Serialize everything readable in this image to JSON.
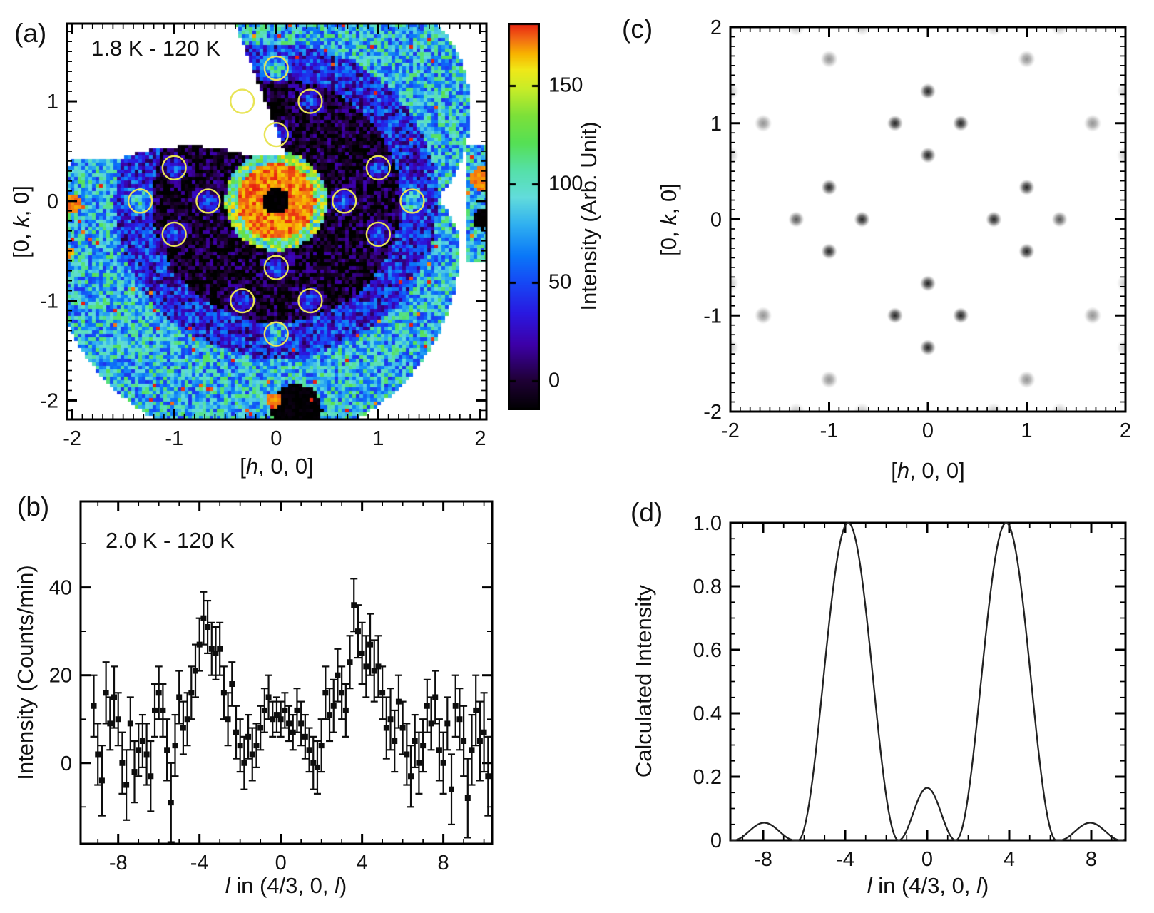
{
  "colors": {
    "frame": "#000000",
    "text": "#111111",
    "curve": "#222222",
    "marker": "#0d0d0d",
    "circle_annotation": "#e8e455",
    "background": "#ffffff"
  },
  "colormap": {
    "stops": [
      [
        0.0,
        "#000000"
      ],
      [
        0.08,
        "#200038"
      ],
      [
        0.17,
        "#3d00a8"
      ],
      [
        0.25,
        "#2a18e0"
      ],
      [
        0.33,
        "#1648f5"
      ],
      [
        0.4,
        "#0a78f8"
      ],
      [
        0.48,
        "#30b0f0"
      ],
      [
        0.55,
        "#62dcdc"
      ],
      [
        0.62,
        "#55e0a8"
      ],
      [
        0.69,
        "#55e055"
      ],
      [
        0.76,
        "#7ce03a"
      ],
      [
        0.83,
        "#c8ec28"
      ],
      [
        0.88,
        "#f0e818"
      ],
      [
        0.92,
        "#f8b400"
      ],
      [
        0.96,
        "#f26a14"
      ],
      [
        1.0,
        "#e82010"
      ]
    ]
  },
  "chart_data": [
    {
      "id": "a",
      "type": "heatmap",
      "panel_label": "(a)",
      "annotation": "1.8 K - 120 K",
      "xlabel_parts": [
        [
          "[",
          0
        ],
        [
          "h",
          1
        ],
        [
          ", 0, 0]",
          0
        ]
      ],
      "ylabel_parts": [
        [
          "[0, ",
          0
        ],
        [
          "k",
          1
        ],
        [
          ", 0]",
          0
        ]
      ],
      "xlim": [
        -2.05,
        2.06
      ],
      "ylim": [
        -2.19,
        1.78
      ],
      "xticks": [
        -2,
        -1,
        0,
        1,
        2
      ],
      "yticks": [
        -2,
        -1,
        0,
        1
      ],
      "minor_step": 0.1,
      "seed": 12345,
      "vmin": -15,
      "vmax": 182,
      "coverage": {
        "bulk": [
          -0.2,
          -0.45,
          2.0
        ],
        "lobe": [
          0.55,
          0.9,
          1.36
        ],
        "lobe_left_line": {
          "x0": -0.45,
          "y_ref": 1.9,
          "slope": 0.379,
          "y_min": 0.45
        },
        "cut_line": {
          "x_min": 1.55,
          "x0": 1.62,
          "slope": -1.79
        },
        "notch": {
          "cx": -0.85,
          "cy": -1.3,
          "r": 1.85,
          "x_max": 0.55,
          "y_min": 0.42
        },
        "sliver": {
          "x_min": 1.88,
          "y_min": -0.62,
          "y_max": 0.55
        }
      },
      "zones": [
        [
          0.13,
          -15,
          4
        ],
        [
          0.38,
          172,
          10
        ],
        [
          0.5,
          120,
          45
        ],
        [
          1.22,
          -6,
          26
        ],
        [
          1.58,
          38,
          36
        ],
        [
          9.0,
          82,
          40
        ]
      ],
      "satellite": {
        "amp": 60,
        "sigma": 0.08
      },
      "spots": [
        {
          "x": 0.2,
          "y": -2.09,
          "r": 0.25,
          "v": -14
        },
        {
          "x": -0.02,
          "y": -2.0,
          "r": 0.07,
          "v": 170
        },
        {
          "x": 2.02,
          "y": -0.18,
          "r": 0.1,
          "v": -14
        },
        {
          "x": 2.02,
          "y": 0.22,
          "r": 0.12,
          "v": 172
        },
        {
          "x": -2.0,
          "y": -0.02,
          "r": 0.09,
          "v": 172
        },
        {
          "x": -2.03,
          "y": -0.52,
          "r": 0.05,
          "v": 168
        }
      ],
      "speckle": {
        "prob": 0.012,
        "min_r": 1.45,
        "v": 168
      },
      "circles": {
        "radius": 0.115,
        "positions": [
          [
            0,
            1.333
          ],
          [
            0,
            0.667
          ],
          [
            0,
            -0.667
          ],
          [
            0,
            -1.333
          ],
          [
            -0.333,
            1
          ],
          [
            0.333,
            1
          ],
          [
            -0.333,
            -1
          ],
          [
            0.333,
            -1
          ],
          [
            -1,
            0.333
          ],
          [
            1,
            0.333
          ],
          [
            -1,
            -0.333
          ],
          [
            1,
            -0.333
          ],
          [
            -0.667,
            0
          ],
          [
            0.667,
            0
          ],
          [
            -1.333,
            0
          ],
          [
            1.333,
            0
          ]
        ]
      },
      "colorbar": {
        "ticks": [
          0,
          50,
          100,
          150
        ],
        "label": "Intensity (Arb. Unit)"
      }
    },
    {
      "id": "b",
      "type": "scatter_errorbar",
      "panel_label": "(b)",
      "annotation": "2.0 K - 120 K",
      "xlabel_parts": [
        [
          "l",
          1
        ],
        [
          " in (4/3, 0, ",
          0
        ],
        [
          "l",
          1
        ],
        [
          ")",
          0
        ]
      ],
      "ylabel": "Intensity (Counts/min)",
      "xlim": [
        -9.85,
        10.4
      ],
      "ylim": [
        -18.4,
        59.6
      ],
      "xticks": [
        -8,
        -4,
        0,
        4,
        8
      ],
      "x_minor_step": 1,
      "yticks": [
        0,
        20,
        40
      ],
      "y_minor_step": 10,
      "points": [
        [
          -9.2,
          13,
          7
        ],
        [
          -9,
          2,
          7
        ],
        [
          -8.8,
          -4,
          8
        ],
        [
          -8.6,
          16,
          7
        ],
        [
          -8.4,
          9,
          6
        ],
        [
          -8.2,
          15,
          7
        ],
        [
          -8,
          10,
          6
        ],
        [
          -7.8,
          0,
          7
        ],
        [
          -7.6,
          -5,
          8
        ],
        [
          -7.4,
          9,
          6
        ],
        [
          -7.2,
          -2,
          7
        ],
        [
          -7,
          3,
          6
        ],
        [
          -6.8,
          5,
          6
        ],
        [
          -6.6,
          2,
          7
        ],
        [
          -6.4,
          -3,
          8
        ],
        [
          -6.2,
          12,
          6
        ],
        [
          -6,
          16,
          6
        ],
        [
          -5.8,
          12,
          6
        ],
        [
          -5.6,
          3,
          7
        ],
        [
          -5.4,
          -9,
          9
        ],
        [
          -5.2,
          4,
          7
        ],
        [
          -5,
          15,
          6
        ],
        [
          -4.8,
          8,
          6
        ],
        [
          -4.6,
          10,
          6
        ],
        [
          -4.4,
          16,
          6
        ],
        [
          -4.2,
          21,
          6
        ],
        [
          -4,
          27,
          6
        ],
        [
          -3.8,
          33,
          6
        ],
        [
          -3.6,
          31,
          6
        ],
        [
          -3.4,
          26,
          6
        ],
        [
          -3.2,
          25,
          6
        ],
        [
          -3,
          26,
          6
        ],
        [
          -2.8,
          16,
          6
        ],
        [
          -2.6,
          10,
          6
        ],
        [
          -2.4,
          18,
          5
        ],
        [
          -2.2,
          7,
          6
        ],
        [
          -2,
          4,
          6
        ],
        [
          -1.8,
          0,
          6
        ],
        [
          -1.6,
          6,
          5
        ],
        [
          -1.4,
          2,
          6
        ],
        [
          -1.2,
          4,
          5
        ],
        [
          -1,
          8,
          5
        ],
        [
          -0.8,
          12,
          5
        ],
        [
          -0.6,
          15,
          5
        ],
        [
          -0.4,
          10,
          4
        ],
        [
          -0.2,
          11,
          4
        ],
        [
          0,
          10,
          4
        ],
        [
          0.2,
          12,
          4
        ],
        [
          0.4,
          9,
          4
        ],
        [
          0.6,
          7,
          4
        ],
        [
          0.8,
          12,
          5
        ],
        [
          1,
          9,
          5
        ],
        [
          1.2,
          6,
          5
        ],
        [
          1.4,
          3,
          5
        ],
        [
          1.6,
          0,
          6
        ],
        [
          1.8,
          -1,
          6
        ],
        [
          2,
          4,
          6
        ],
        [
          2.2,
          16,
          6
        ],
        [
          2.4,
          11,
          6
        ],
        [
          2.6,
          13,
          6
        ],
        [
          2.8,
          20,
          6
        ],
        [
          3,
          16,
          6
        ],
        [
          3.2,
          12,
          6
        ],
        [
          3.4,
          23,
          6
        ],
        [
          3.6,
          36,
          6
        ],
        [
          3.8,
          30,
          6
        ],
        [
          4,
          25,
          7
        ],
        [
          4.2,
          22,
          7
        ],
        [
          4.4,
          27,
          7
        ],
        [
          4.6,
          21,
          7
        ],
        [
          4.8,
          22,
          7
        ],
        [
          5,
          16,
          6
        ],
        [
          5.2,
          8,
          7
        ],
        [
          5.4,
          10,
          7
        ],
        [
          5.6,
          5,
          7
        ],
        [
          5.8,
          14,
          6
        ],
        [
          6,
          8,
          6
        ],
        [
          6.2,
          2,
          7
        ],
        [
          6.4,
          -3,
          7
        ],
        [
          6.6,
          5,
          6
        ],
        [
          6.8,
          0,
          7
        ],
        [
          7,
          4,
          6
        ],
        [
          7.2,
          13,
          6
        ],
        [
          7.4,
          9,
          6
        ],
        [
          7.6,
          15,
          6
        ],
        [
          7.8,
          3,
          7
        ],
        [
          8,
          0,
          7
        ],
        [
          8.2,
          9,
          6
        ],
        [
          8.4,
          -6,
          8
        ],
        [
          8.6,
          13,
          7
        ],
        [
          8.8,
          10,
          7
        ],
        [
          9,
          5,
          8
        ],
        [
          9.2,
          -8,
          9
        ],
        [
          9.4,
          3,
          8
        ],
        [
          9.6,
          12,
          8
        ],
        [
          9.8,
          5,
          9
        ],
        [
          10,
          7,
          9
        ],
        [
          10.2,
          -3,
          9
        ]
      ]
    },
    {
      "id": "c",
      "type": "scatter_spots",
      "panel_label": "(c)",
      "xlabel_parts": [
        [
          "[",
          0
        ],
        [
          "h",
          1
        ],
        [
          ", 0, 0]",
          0
        ]
      ],
      "ylabel_parts": [
        [
          "[0, ",
          0
        ],
        [
          "k",
          1
        ],
        [
          ", 0]",
          0
        ]
      ],
      "xlim": [
        -2,
        2
      ],
      "ylim": [
        -2,
        2
      ],
      "xticks": [
        -2,
        -1,
        0,
        1,
        2
      ],
      "yticks": [
        -2,
        -1,
        0,
        1,
        2
      ],
      "minor_step": 0.1,
      "dots": [
        [
          0,
          0.667,
          0.92
        ],
        [
          0,
          1.333,
          0.92
        ],
        [
          0,
          -0.667,
          0.92
        ],
        [
          0,
          -1.333,
          0.92
        ],
        [
          -0.333,
          1,
          0.92
        ],
        [
          0.333,
          1,
          0.92
        ],
        [
          -0.333,
          -1,
          0.92
        ],
        [
          0.333,
          -1,
          0.92
        ],
        [
          -1,
          0.333,
          0.92
        ],
        [
          1,
          0.333,
          0.92
        ],
        [
          -1,
          -0.333,
          0.92
        ],
        [
          1,
          -0.333,
          0.92
        ],
        [
          -0.667,
          0,
          0.92
        ],
        [
          0.667,
          0,
          0.92
        ],
        [
          -1.333,
          0,
          0.7
        ],
        [
          1.333,
          0,
          0.7
        ],
        [
          -1.667,
          1,
          0.45
        ],
        [
          1.667,
          1,
          0.45
        ],
        [
          -1.667,
          -1,
          0.45
        ],
        [
          1.667,
          -1,
          0.45
        ],
        [
          -1,
          1.667,
          0.45
        ],
        [
          1,
          1.667,
          0.45
        ],
        [
          -1,
          -1.667,
          0.45
        ],
        [
          1,
          -1.667,
          0.45
        ],
        [
          -1.333,
          2,
          0.22
        ],
        [
          -0.667,
          2,
          0.22
        ],
        [
          0.667,
          2,
          0.22
        ],
        [
          1.333,
          2,
          0.22
        ],
        [
          -1.333,
          -2,
          0.22
        ],
        [
          -0.667,
          -2,
          0.22
        ],
        [
          0.667,
          -2,
          0.22
        ],
        [
          1.333,
          -2,
          0.22
        ],
        [
          -2,
          0.667,
          0.22
        ],
        [
          -2,
          1.333,
          0.22
        ],
        [
          2,
          0.667,
          0.22
        ],
        [
          2,
          1.333,
          0.22
        ],
        [
          -2,
          -0.667,
          0.22
        ],
        [
          -2,
          -1.333,
          0.22
        ],
        [
          2,
          -0.667,
          0.22
        ],
        [
          2,
          -1.333,
          0.22
        ]
      ]
    },
    {
      "id": "d",
      "type": "line",
      "panel_label": "(d)",
      "xlabel_parts": [
        [
          "l",
          1
        ],
        [
          " in (4/3, 0, ",
          0
        ],
        [
          "l",
          1
        ],
        [
          ")",
          0
        ]
      ],
      "ylabel": "Calculated Intensity",
      "xlim": [
        -9.6,
        9.67
      ],
      "ylim": [
        0,
        1.0
      ],
      "xticks": [
        -8,
        -4,
        0,
        4,
        8
      ],
      "x_minor_step": 1,
      "yticks": [
        0,
        0.2,
        0.4,
        0.6,
        0.8,
        1.0
      ],
      "y_minor_step": 0.05,
      "sample_step": 0.04,
      "peaks": [
        {
          "center": -3.85,
          "width": 4.9,
          "amp": 1.0
        },
        {
          "center": 3.85,
          "width": 4.9,
          "amp": 1.0
        },
        {
          "center": 0,
          "width": 2.8,
          "amp": 0.165
        },
        {
          "center": -7.95,
          "width": 3.0,
          "amp": 0.055
        },
        {
          "center": 7.95,
          "width": 3.0,
          "amp": 0.055
        },
        {
          "center": -10.6,
          "width": 2.3,
          "amp": 0.04
        },
        {
          "center": 10.6,
          "width": 2.3,
          "amp": 0.04
        }
      ]
    }
  ]
}
